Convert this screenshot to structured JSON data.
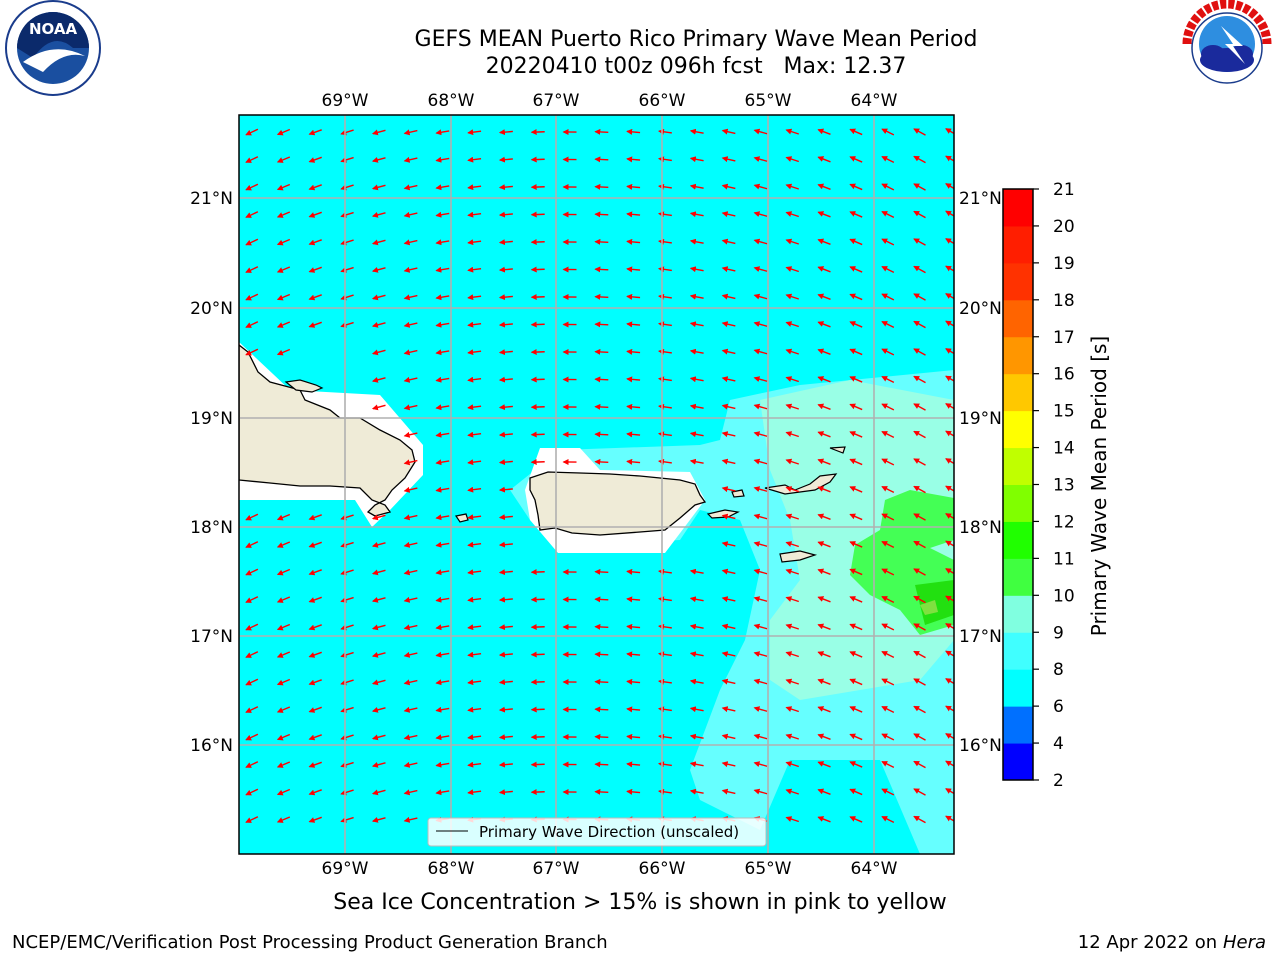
{
  "title": {
    "line1": "GEFS MEAN Puerto Rico Primary Wave Mean Period",
    "line2": "20220410 t00z 096h fcst   Max: 12.37"
  },
  "logos": {
    "noaa_text": "NOAA",
    "noaa_ring": "NATIONAL OCEANIC AND ATMOSPHERIC ADMINISTRATION · U.S. DEPARTMENT OF COMMERCE",
    "nws_ring": "NATIONAL WEATHER SERVICE"
  },
  "map": {
    "lon_labels": [
      "69°W",
      "68°W",
      "67°W",
      "66°W",
      "65°W",
      "64°W"
    ],
    "lat_labels": [
      "21°N",
      "20°N",
      "19°N",
      "18°N",
      "17°N",
      "16°N"
    ],
    "legend_label": "Primary Wave Direction (unscaled)",
    "arrow_color": "#ff0000",
    "ocean_base_color": "#00ffff",
    "land_color": "#efebd7"
  },
  "colorbar": {
    "label": "Primary Wave Mean Period [s]",
    "ticks": [
      "2",
      "4",
      "6",
      "8",
      "9",
      "10",
      "11",
      "12",
      "13",
      "14",
      "15",
      "16",
      "17",
      "18",
      "19",
      "20",
      "21"
    ],
    "colors": [
      "#0000ff",
      "#0070ff",
      "#00ffff",
      "#40ffff",
      "#80ffe0",
      "#40ff40",
      "#20ff00",
      "#80ff00",
      "#c0ff00",
      "#ffff00",
      "#ffc800",
      "#ff9600",
      "#ff6400",
      "#ff3200",
      "#ff0000"
    ]
  },
  "note": "Sea Ice Concentration > 15% is shown in pink to yellow",
  "footer": {
    "left": "NCEP/EMC/Verification Post Processing Product Generation Branch",
    "date": "12 Apr 2022 on ",
    "machine": "Hera"
  }
}
